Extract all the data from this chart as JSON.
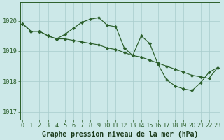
{
  "line1_x": [
    0,
    1,
    2,
    3,
    4,
    5,
    6,
    7,
    8,
    9,
    10,
    11,
    12,
    13,
    14,
    15,
    16,
    17,
    18,
    19,
    20,
    21,
    22,
    23
  ],
  "line1_y": [
    1019.9,
    1019.65,
    1019.65,
    1019.5,
    1019.4,
    1019.55,
    1019.75,
    1019.95,
    1020.05,
    1020.1,
    1019.85,
    1019.8,
    1019.1,
    1018.85,
    1019.5,
    1019.25,
    1018.55,
    1018.05,
    1017.85,
    1017.75,
    1017.7,
    1017.95,
    1018.3,
    1018.45
  ],
  "line2_x": [
    0,
    1,
    2,
    3,
    4,
    5,
    6,
    7,
    8,
    9,
    10,
    11,
    12,
    13,
    14,
    15,
    16,
    17,
    18,
    19,
    20,
    21,
    22,
    23
  ],
  "line2_y": [
    1019.9,
    1019.65,
    1019.65,
    1019.5,
    1019.4,
    1019.4,
    1019.35,
    1019.3,
    1019.25,
    1019.2,
    1019.1,
    1019.05,
    1018.95,
    1018.85,
    1018.8,
    1018.7,
    1018.6,
    1018.5,
    1018.4,
    1018.3,
    1018.2,
    1018.15,
    1018.1,
    1018.45
  ],
  "line_color": "#2a5e2a",
  "marker_color": "#2a5e2a",
  "bg_color": "#cce8e8",
  "grid_color": "#a8cccc",
  "axis_color": "#2a5e2a",
  "text_color": "#1a3a1a",
  "xlabel": "Graphe pression niveau de la mer (hPa)",
  "ylim": [
    1016.75,
    1020.6
  ],
  "yticks": [
    1017,
    1018,
    1019,
    1020
  ],
  "xticks": [
    0,
    1,
    2,
    3,
    4,
    5,
    6,
    7,
    8,
    9,
    10,
    11,
    12,
    13,
    14,
    15,
    16,
    17,
    18,
    19,
    20,
    21,
    22,
    23
  ],
  "xlabel_fontsize": 7.0,
  "tick_fontsize": 6.2,
  "linewidth": 0.85,
  "markersize": 2.2
}
